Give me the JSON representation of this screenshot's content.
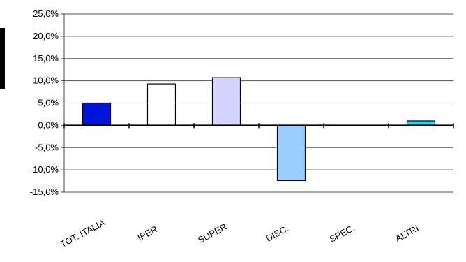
{
  "chart_data": {
    "type": "bar",
    "title": "",
    "xlabel": "",
    "ylabel": "",
    "categories": [
      "TOT. ITALIA",
      "IPER",
      "SUPER",
      "DISC.",
      "SPEC.",
      "ALTRI"
    ],
    "values": [
      5.0,
      9.3,
      10.7,
      -12.4,
      0.0,
      1.0
    ],
    "bar_colors": [
      "#0014d8",
      "#ffffff",
      "#d4d4ff",
      "#99ccff",
      "#99ccff",
      "#33ccee"
    ],
    "ylim": [
      -15,
      25
    ],
    "yticks": [
      25,
      20,
      15,
      10,
      5,
      0,
      -5,
      -10,
      -15
    ],
    "ytick_labels": [
      "25,0%",
      "20,0%",
      "15,0%",
      "10,0%",
      "5,0%",
      "0,0%",
      "-5,0%",
      "-10,0%",
      "-15,0%"
    ],
    "grid": true,
    "legend": "none"
  }
}
